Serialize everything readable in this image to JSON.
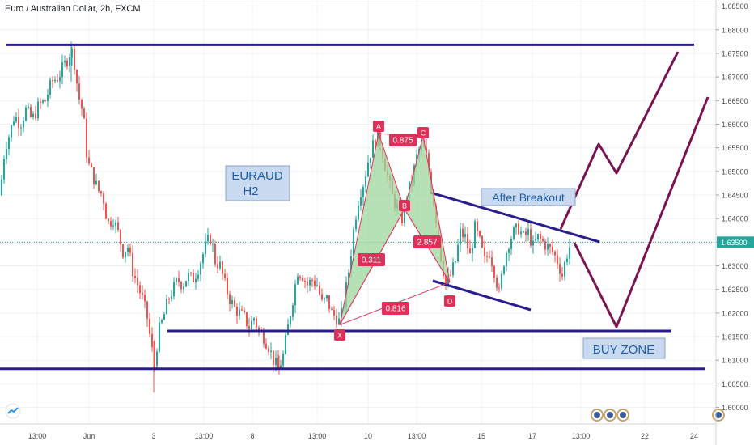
{
  "header": {
    "title": "Euro / Australian Dollar, 2h, FXCM"
  },
  "colors": {
    "up": "#26a69a",
    "down": "#ef5350",
    "level_line": "#2a1e8c",
    "projection": "#7a1450",
    "harmonic_fill": "#9ed79e",
    "harmonic_stroke": "#e0305a",
    "pattern_label_bg": "#e0305a",
    "annotation_bg": "#c9daf0",
    "annotation_text": "#1f5fa8",
    "price_tag_bg": "#26a69a",
    "grid": "#eef0f3",
    "axis_text": "#4a4a4a"
  },
  "chart_data": {
    "type": "candlestick",
    "title": "Euro / Australian Dollar, 2h, FXCM",
    "y_axis": {
      "side": "right",
      "ticks": [
        "1.68500",
        "1.68000",
        "1.67500",
        "1.67000",
        "1.66500",
        "1.66000",
        "1.65500",
        "1.65000",
        "1.64500",
        "1.64000",
        "1.63500",
        "1.63000",
        "1.62500",
        "1.62000",
        "1.61500",
        "1.61000",
        "1.60500",
        "1.60000"
      ],
      "range": [
        1.5965,
        1.6863
      ],
      "current_price": "1.63500"
    },
    "x_axis": {
      "ticks": [
        "13:00",
        "Jun",
        "3",
        "13:00",
        "8",
        "13:00",
        "10",
        "13:00",
        "15",
        "17",
        "13:00",
        "22",
        "24",
        "13:00"
      ]
    },
    "grid": true,
    "price_path": [
      [
        0,
        1.645
      ],
      [
        6,
        1.655
      ],
      [
        12,
        1.658
      ],
      [
        18,
        1.662
      ],
      [
        25,
        1.66
      ],
      [
        32,
        1.663
      ],
      [
        40,
        1.661
      ],
      [
        48,
        1.664
      ],
      [
        56,
        1.665
      ],
      [
        64,
        1.669
      ],
      [
        72,
        1.67
      ],
      [
        78,
        1.672
      ],
      [
        84,
        1.674
      ],
      [
        88,
        1.676
      ],
      [
        92,
        1.673
      ],
      [
        97,
        1.666
      ],
      [
        103,
        1.662
      ],
      [
        108,
        1.652
      ],
      [
        115,
        1.649
      ],
      [
        121,
        1.646
      ],
      [
        127,
        1.645
      ],
      [
        133,
        1.639
      ],
      [
        140,
        1.64
      ],
      [
        146,
        1.637
      ],
      [
        152,
        1.633
      ],
      [
        158,
        1.634
      ],
      [
        164,
        1.629
      ],
      [
        170,
        1.626
      ],
      [
        176,
        1.623
      ],
      [
        182,
        1.619
      ],
      [
        187,
        1.613
      ],
      [
        191,
        1.609
      ],
      [
        196,
        1.616
      ],
      [
        202,
        1.619
      ],
      [
        208,
        1.623
      ],
      [
        214,
        1.625
      ],
      [
        220,
        1.627
      ],
      [
        226,
        1.626
      ],
      [
        232,
        1.628
      ],
      [
        238,
        1.627
      ],
      [
        244,
        1.629
      ],
      [
        250,
        1.632
      ],
      [
        256,
        1.635
      ],
      [
        261,
        1.636
      ],
      [
        266,
        1.631
      ],
      [
        272,
        1.63
      ],
      [
        278,
        1.626
      ],
      [
        284,
        1.623
      ],
      [
        290,
        1.621
      ],
      [
        296,
        1.62
      ],
      [
        302,
        1.619
      ],
      [
        308,
        1.617
      ],
      [
        314,
        1.619
      ],
      [
        320,
        1.616
      ],
      [
        326,
        1.615
      ],
      [
        332,
        1.613
      ],
      [
        338,
        1.61
      ],
      [
        344,
        1.608
      ],
      [
        350,
        1.611
      ],
      [
        356,
        1.617
      ],
      [
        362,
        1.623
      ],
      [
        368,
        1.629
      ],
      [
        374,
        1.628
      ],
      [
        380,
        1.626
      ],
      [
        386,
        1.627
      ],
      [
        392,
        1.626
      ],
      [
        398,
        1.622
      ],
      [
        404,
        1.623
      ],
      [
        410,
        1.62
      ],
      [
        416,
        1.619
      ],
      [
        420,
        1.618
      ],
      [
        426,
        1.623
      ],
      [
        432,
        1.63
      ],
      [
        438,
        1.639
      ],
      [
        444,
        1.645
      ],
      [
        450,
        1.648
      ],
      [
        456,
        1.653
      ],
      [
        462,
        1.656
      ],
      [
        468,
        1.658
      ],
      [
        474,
        1.653
      ],
      [
        480,
        1.648
      ],
      [
        486,
        1.644
      ],
      [
        492,
        1.642
      ],
      [
        497,
        1.64
      ],
      [
        503,
        1.645
      ],
      [
        509,
        1.648
      ],
      [
        515,
        1.653
      ],
      [
        521,
        1.656
      ],
      [
        527,
        1.653
      ],
      [
        533,
        1.647
      ],
      [
        539,
        1.64
      ],
      [
        545,
        1.632
      ],
      [
        551,
        1.626
      ],
      [
        557,
        1.628
      ],
      [
        563,
        1.631
      ],
      [
        569,
        1.637
      ],
      [
        575,
        1.636
      ],
      [
        581,
        1.632
      ],
      [
        587,
        1.638
      ],
      [
        593,
        1.635
      ],
      [
        599,
        1.631
      ],
      [
        605,
        1.633
      ],
      [
        611,
        1.629
      ],
      [
        617,
        1.624
      ],
      [
        623,
        1.631
      ],
      [
        629,
        1.635
      ],
      [
        635,
        1.637
      ],
      [
        641,
        1.638
      ],
      [
        647,
        1.636
      ],
      [
        653,
        1.637
      ],
      [
        659,
        1.634
      ],
      [
        665,
        1.636
      ],
      [
        671,
        1.635
      ],
      [
        677,
        1.634
      ],
      [
        683,
        1.633
      ],
      [
        689,
        1.631
      ],
      [
        695,
        1.628
      ],
      [
        700,
        1.632
      ],
      [
        706,
        1.635
      ]
    ],
    "harmonic_pattern": {
      "points": [
        {
          "label": "X",
          "price": 1.6175
        },
        {
          "label": "A",
          "price": 1.658
        },
        {
          "label": "B",
          "price": 1.642
        },
        {
          "label": "C",
          "price": 1.6575
        },
        {
          "label": "D",
          "price": 1.6265
        }
      ],
      "ratios": [
        "0.875",
        "0.311",
        "2.857",
        "0.816"
      ]
    },
    "levels": [
      {
        "name": "resistance-top",
        "price": 1.6768
      },
      {
        "name": "support-upper",
        "price": 1.6162
      },
      {
        "name": "support-lower",
        "price": 1.6082
      }
    ],
    "annotations": {
      "symbol_box": [
        "EURAUD",
        "H2"
      ],
      "after_breakout": "After Breakout",
      "buy_zone": "BUY ZONE"
    }
  }
}
